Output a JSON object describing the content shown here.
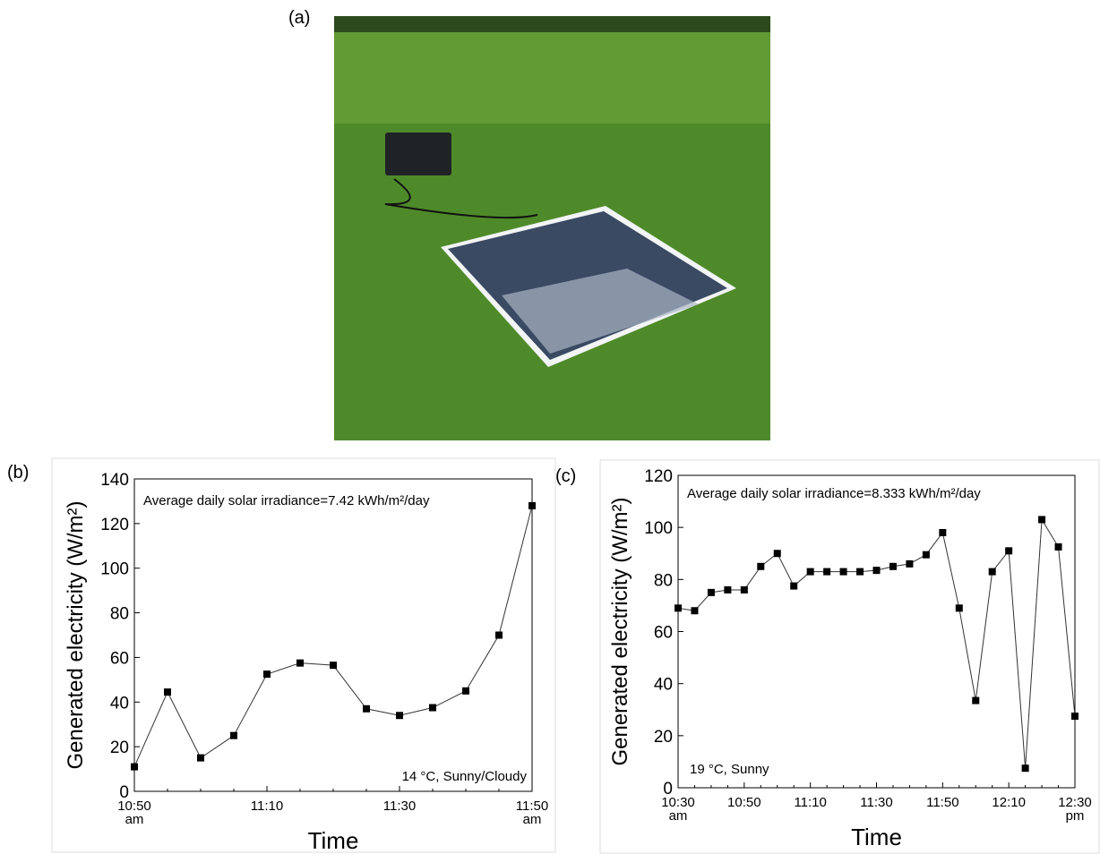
{
  "panel_labels": [
    "(a)",
    "(b)",
    "(c)"
  ],
  "chart_data": [
    {
      "type": "line",
      "x_label": "Time",
      "y_label": "Generated electricity (W/m²)",
      "annotations": [
        "Average daily solar irradiance=7.42 kWh/m²/day",
        "14 °C, Sunny/Cloudy"
      ],
      "categories": [
        "10:50\nam",
        null,
        null,
        null,
        "11:10",
        null,
        null,
        null,
        "11:30",
        null,
        null,
        null,
        "11:50\nam"
      ],
      "series": [
        {
          "name": null,
          "color": "#000000",
          "values": [
            11,
            44.5,
            15,
            25,
            52.5,
            57.5,
            56.5,
            37,
            34,
            37.5,
            45,
            70,
            128
          ]
        }
      ],
      "ylim": [
        0,
        140
      ],
      "yticks": [
        0,
        20,
        40,
        60,
        80,
        100,
        120,
        140
      ]
    },
    {
      "type": "line",
      "x_label": "Time",
      "y_label": "Generated electricity (W/m²)",
      "annotations": [
        "Average daily solar irradiance=8.333 kWh/m²/day",
        "19 °C, Sunny"
      ],
      "categories": [
        "10:30\nam",
        null,
        null,
        null,
        "10:50",
        null,
        null,
        null,
        "11:10",
        null,
        null,
        null,
        "11:30",
        null,
        null,
        null,
        "11:50",
        null,
        null,
        null,
        "12:10",
        null,
        null,
        null,
        "12:30\npm"
      ],
      "series": [
        {
          "name": null,
          "color": "#000000",
          "values": [
            69,
            68,
            75,
            76,
            76,
            85,
            90,
            77.5,
            83,
            83,
            83,
            83,
            83.5,
            85,
            86,
            89.5,
            98,
            69,
            33.5,
            83,
            91,
            7.5,
            103,
            92.5,
            27.5
          ]
        }
      ],
      "ylim": [
        0,
        120
      ],
      "yticks": [
        0,
        20,
        40,
        60,
        80,
        100,
        120
      ]
    }
  ]
}
